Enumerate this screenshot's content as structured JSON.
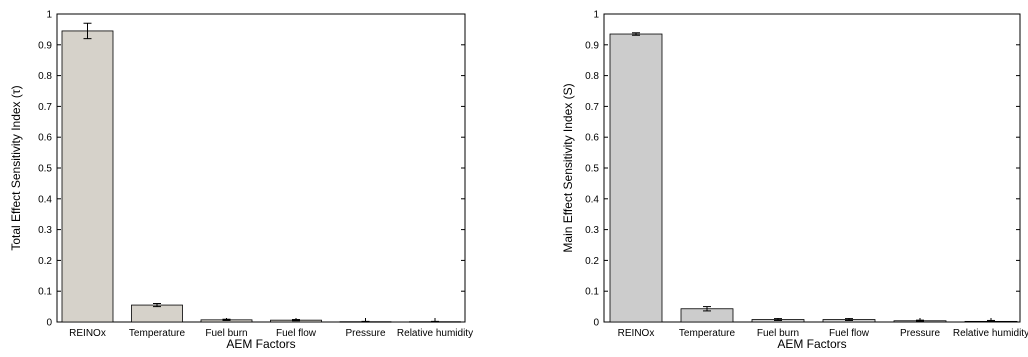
{
  "chart_data": [
    {
      "type": "bar",
      "title": "",
      "xlabel": "AEM Factors",
      "ylabel": "Total Effect Sensitivity Index (τ)",
      "categories": [
        "REINOx",
        "Temperature",
        "Fuel burn",
        "Fuel flow",
        "Pressure",
        "Relative humidity"
      ],
      "values": [
        0.945,
        0.055,
        0.007,
        0.006,
        0.001,
        0.001
      ],
      "error": [
        0.025,
        0.005,
        0.002,
        0.002,
        0.001,
        0.001
      ],
      "ylim": [
        0,
        1
      ],
      "yticks": [
        "0",
        "0.1",
        "0.2",
        "0.3",
        "0.4",
        "0.5",
        "0.6",
        "0.7",
        "0.8",
        "0.9",
        "1"
      ],
      "bar_color": "#d6d2ca",
      "grid": false
    },
    {
      "type": "bar",
      "title": "",
      "xlabel": "AEM Factors",
      "ylabel": "Main Effect Sensitivity Index (S)",
      "categories": [
        "REINOx",
        "Temperature",
        "Fuel burn",
        "Fuel flow",
        "Pressure",
        "Relative humidity"
      ],
      "values": [
        0.935,
        0.043,
        0.008,
        0.008,
        0.004,
        0.002
      ],
      "error": [
        0.004,
        0.007,
        0.003,
        0.003,
        0.002,
        0.003
      ],
      "ylim": [
        0,
        1
      ],
      "yticks": [
        "0",
        "0.1",
        "0.2",
        "0.3",
        "0.4",
        "0.5",
        "0.6",
        "0.7",
        "0.8",
        "0.9",
        "1"
      ],
      "bar_color": "#cccccc",
      "grid": false
    }
  ]
}
